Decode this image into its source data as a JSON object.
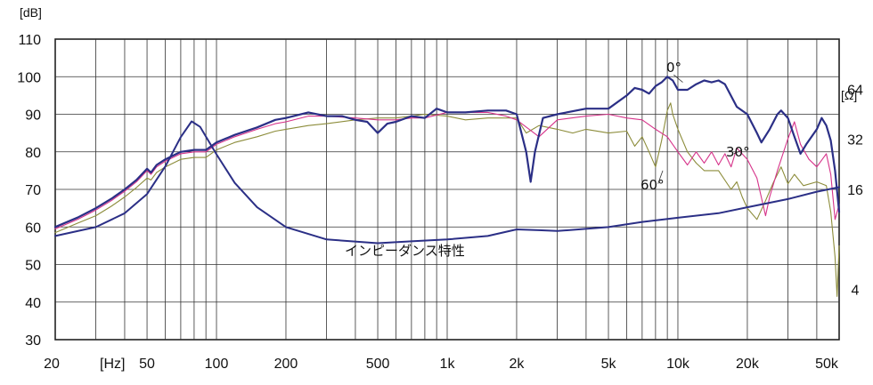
{
  "chart_data": {
    "type": "line",
    "xscale": "log",
    "xlim": [
      20,
      50000
    ],
    "ylim": [
      30,
      110
    ],
    "y2lim_ohm": [
      2,
      128
    ],
    "grid": true,
    "ylabel": "[dB]",
    "xlabel": "[Hz]",
    "y2label": "[Ω]",
    "x_tick_labels": [
      "20",
      "50",
      "100",
      "200",
      "500",
      "1k",
      "2k",
      "5k",
      "10k",
      "20k",
      "50k"
    ],
    "x_tick_values": [
      20,
      50,
      100,
      200,
      500,
      1000,
      2000,
      5000,
      10000,
      20000,
      50000
    ],
    "y_ticks": [
      30,
      40,
      50,
      60,
      70,
      80,
      90,
      100,
      110
    ],
    "y2_ticks": [
      4,
      16,
      32,
      64
    ],
    "annotations": {
      "on_axis": "0°",
      "off_axis_30": "30°",
      "off_axis_60": "60°",
      "impedance": "インピーダンス特性"
    },
    "colors": {
      "on_axis": "#2b2f86",
      "off_axis_30": "#d6338a",
      "off_axis_60": "#8c8c3a",
      "impedance": "#2b2f86",
      "grid": "#333333"
    },
    "series": [
      {
        "key": "spl_0deg",
        "axis": "dB",
        "points": [
          [
            20,
            60
          ],
          [
            25,
            62.5
          ],
          [
            30,
            65
          ],
          [
            35,
            67.5
          ],
          [
            40,
            70
          ],
          [
            45,
            72.5
          ],
          [
            50,
            75.5
          ],
          [
            52,
            74.5
          ],
          [
            55,
            76.5
          ],
          [
            60,
            78
          ],
          [
            70,
            80
          ],
          [
            80,
            80.5
          ],
          [
            90,
            80.5
          ],
          [
            100,
            82.5
          ],
          [
            120,
            84.5
          ],
          [
            150,
            86.5
          ],
          [
            180,
            88.5
          ],
          [
            200,
            89
          ],
          [
            250,
            90.5
          ],
          [
            300,
            89.5
          ],
          [
            350,
            89.5
          ],
          [
            400,
            88.5
          ],
          [
            450,
            88
          ],
          [
            500,
            85
          ],
          [
            550,
            87.5
          ],
          [
            600,
            88
          ],
          [
            700,
            89.5
          ],
          [
            800,
            89
          ],
          [
            900,
            91.5
          ],
          [
            1000,
            90.5
          ],
          [
            1200,
            90.5
          ],
          [
            1500,
            91
          ],
          [
            1800,
            91
          ],
          [
            2000,
            90
          ],
          [
            2200,
            80
          ],
          [
            2300,
            72
          ],
          [
            2400,
            80
          ],
          [
            2600,
            89
          ],
          [
            3000,
            90
          ],
          [
            4000,
            91.5
          ],
          [
            5000,
            91.5
          ],
          [
            6000,
            95
          ],
          [
            6500,
            97
          ],
          [
            7000,
            96.5
          ],
          [
            7500,
            95.5
          ],
          [
            8000,
            97.5
          ],
          [
            8500,
            98.5
          ],
          [
            9000,
            100
          ],
          [
            9500,
            99
          ],
          [
            10000,
            96.5
          ],
          [
            11000,
            96.5
          ],
          [
            12000,
            98
          ],
          [
            13000,
            99
          ],
          [
            14000,
            98.5
          ],
          [
            15000,
            99
          ],
          [
            16000,
            98
          ],
          [
            18000,
            92
          ],
          [
            20000,
            90
          ],
          [
            22000,
            85
          ],
          [
            23000,
            82.5
          ],
          [
            25000,
            86
          ],
          [
            27000,
            90
          ],
          [
            28000,
            91
          ],
          [
            30000,
            89
          ],
          [
            32000,
            84
          ],
          [
            34000,
            79.5
          ],
          [
            36000,
            82
          ],
          [
            40000,
            86
          ],
          [
            42000,
            89
          ],
          [
            44000,
            87
          ],
          [
            46000,
            83
          ],
          [
            48000,
            75
          ],
          [
            50000,
            64
          ]
        ]
      },
      {
        "key": "spl_30deg",
        "axis": "dB",
        "points": [
          [
            20,
            59.5
          ],
          [
            25,
            62
          ],
          [
            30,
            64.5
          ],
          [
            35,
            67
          ],
          [
            40,
            69.5
          ],
          [
            45,
            72
          ],
          [
            50,
            75
          ],
          [
            52,
            74
          ],
          [
            55,
            76
          ],
          [
            60,
            77.5
          ],
          [
            70,
            79.5
          ],
          [
            80,
            80
          ],
          [
            90,
            80
          ],
          [
            100,
            82
          ],
          [
            120,
            84
          ],
          [
            150,
            86
          ],
          [
            180,
            87.5
          ],
          [
            200,
            88
          ],
          [
            250,
            89.5
          ],
          [
            300,
            89.5
          ],
          [
            400,
            89
          ],
          [
            500,
            88.5
          ],
          [
            600,
            88.5
          ],
          [
            700,
            89
          ],
          [
            800,
            89
          ],
          [
            1000,
            90.5
          ],
          [
            1200,
            90.5
          ],
          [
            1500,
            90.5
          ],
          [
            1800,
            89.5
          ],
          [
            2000,
            88.5
          ],
          [
            2500,
            84
          ],
          [
            3000,
            88.5
          ],
          [
            4000,
            89.5
          ],
          [
            5000,
            90
          ],
          [
            6000,
            89
          ],
          [
            7000,
            88.5
          ],
          [
            8000,
            86
          ],
          [
            9000,
            84
          ],
          [
            10000,
            80
          ],
          [
            11000,
            76.5
          ],
          [
            12000,
            80
          ],
          [
            13000,
            77
          ],
          [
            14000,
            80
          ],
          [
            15000,
            76.5
          ],
          [
            16000,
            79.5
          ],
          [
            17000,
            76
          ],
          [
            18000,
            81
          ],
          [
            20000,
            78
          ],
          [
            22000,
            73
          ],
          [
            24000,
            63
          ],
          [
            25000,
            68
          ],
          [
            27000,
            75
          ],
          [
            30000,
            83.5
          ],
          [
            32000,
            88
          ],
          [
            34000,
            82
          ],
          [
            37000,
            78
          ],
          [
            40000,
            76
          ],
          [
            44000,
            79.5
          ],
          [
            46000,
            74
          ],
          [
            48000,
            62
          ],
          [
            50000,
            66
          ]
        ]
      },
      {
        "key": "spl_60deg",
        "axis": "dB",
        "points": [
          [
            20,
            58.5
          ],
          [
            25,
            61
          ],
          [
            30,
            63
          ],
          [
            35,
            65.5
          ],
          [
            40,
            68
          ],
          [
            45,
            70.5
          ],
          [
            50,
            73
          ],
          [
            52,
            72.5
          ],
          [
            55,
            74.5
          ],
          [
            60,
            76
          ],
          [
            70,
            78
          ],
          [
            80,
            78.5
          ],
          [
            90,
            78.5
          ],
          [
            100,
            80.5
          ],
          [
            120,
            82.5
          ],
          [
            150,
            84
          ],
          [
            180,
            85.5
          ],
          [
            200,
            86
          ],
          [
            250,
            87
          ],
          [
            300,
            87.5
          ],
          [
            400,
            88.5
          ],
          [
            500,
            89
          ],
          [
            600,
            89
          ],
          [
            700,
            89.5
          ],
          [
            800,
            90
          ],
          [
            1000,
            89.5
          ],
          [
            1200,
            88.5
          ],
          [
            1500,
            89
          ],
          [
            2000,
            89
          ],
          [
            2200,
            85
          ],
          [
            2500,
            87
          ],
          [
            3000,
            86
          ],
          [
            3500,
            85
          ],
          [
            4000,
            86
          ],
          [
            5000,
            85
          ],
          [
            6000,
            85.5
          ],
          [
            6500,
            81.5
          ],
          [
            7000,
            84
          ],
          [
            7500,
            80
          ],
          [
            8000,
            76
          ],
          [
            8500,
            83
          ],
          [
            9000,
            91
          ],
          [
            9300,
            93
          ],
          [
            9500,
            90
          ],
          [
            10000,
            86
          ],
          [
            11000,
            80
          ],
          [
            12000,
            77
          ],
          [
            13000,
            75
          ],
          [
            15000,
            75
          ],
          [
            17000,
            70
          ],
          [
            18000,
            72
          ],
          [
            19000,
            68
          ],
          [
            20000,
            65
          ],
          [
            22000,
            62
          ],
          [
            24000,
            67
          ],
          [
            26000,
            72
          ],
          [
            28000,
            76
          ],
          [
            30000,
            71.5
          ],
          [
            32000,
            74
          ],
          [
            35000,
            71
          ],
          [
            40000,
            72
          ],
          [
            44000,
            71
          ],
          [
            46000,
            64
          ],
          [
            48000,
            52
          ],
          [
            49000,
            41.5
          ],
          [
            50000,
            55
          ]
        ]
      },
      {
        "key": "impedance",
        "axis": "Ω",
        "points": [
          [
            20,
            8.4
          ],
          [
            30,
            9.5
          ],
          [
            40,
            11.5
          ],
          [
            50,
            15
          ],
          [
            60,
            22
          ],
          [
            70,
            33
          ],
          [
            78,
            41
          ],
          [
            85,
            38
          ],
          [
            100,
            26
          ],
          [
            120,
            17.5
          ],
          [
            150,
            12.5
          ],
          [
            200,
            9.5
          ],
          [
            300,
            8.0
          ],
          [
            500,
            7.6
          ],
          [
            700,
            7.8
          ],
          [
            1000,
            8.0
          ],
          [
            1500,
            8.4
          ],
          [
            2000,
            9.2
          ],
          [
            2500,
            9.1
          ],
          [
            3000,
            9.0
          ],
          [
            5000,
            9.5
          ],
          [
            7000,
            10.2
          ],
          [
            10000,
            10.8
          ],
          [
            15000,
            11.5
          ],
          [
            20000,
            12.5
          ],
          [
            30000,
            14
          ],
          [
            40000,
            15.5
          ],
          [
            50000,
            16.5
          ]
        ]
      }
    ]
  }
}
